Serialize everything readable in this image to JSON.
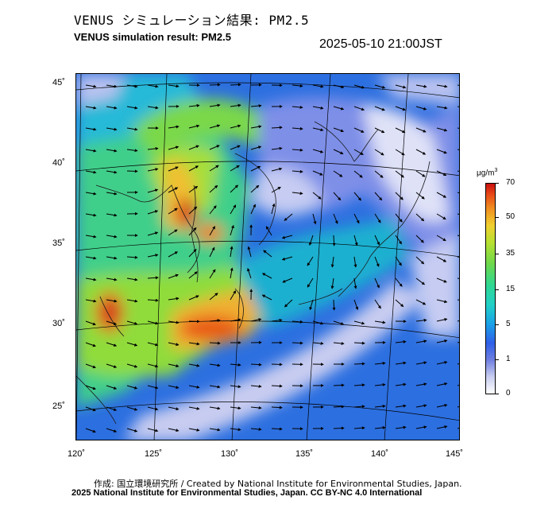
{
  "header": {
    "title_jp": "VENUS シミュレーション結果: PM2.5",
    "title_en": "VENUS simulation result: PM2.5",
    "timestamp": "2025-05-10 21:00JST"
  },
  "map": {
    "lat_labels": [
      "45˚",
      "40˚",
      "35˚",
      "30˚",
      "25˚"
    ],
    "lon_labels": [
      "120˚",
      "125˚",
      "130˚",
      "135˚",
      "140˚",
      "145˚"
    ]
  },
  "colorbar": {
    "unit": "μg/m",
    "unit_sup": "3",
    "ticks": [
      "70",
      "50",
      "35",
      "15",
      "5",
      "1",
      "0"
    ],
    "colors": {
      "low": "#ffffff",
      "blue": "#2f5fe8",
      "cyan": "#21d0c8",
      "green": "#6fd84a",
      "yellow": "#f0d030",
      "orange": "#f09020",
      "red": "#c81010"
    }
  },
  "footer": {
    "credit_jp": "作成: 国立環境研究所 / Created by National Institute for Environmental Studies, Japan.",
    "credit_en": "2025 National Institute for Environmental Studies, Japan. CC BY-NC 4.0 International"
  }
}
